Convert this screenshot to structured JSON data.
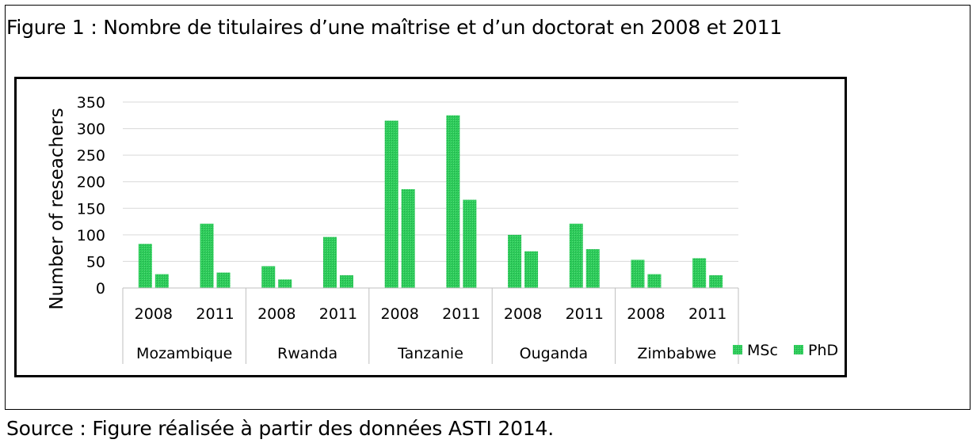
{
  "figure": {
    "caption": "Figure 1 : Nombre de titulaires d’une maîtrise et d’un doctorat en 2008 et 2011",
    "source": "Source : Figure réalisée à partir des données ASTI 2014."
  },
  "chart_data": {
    "type": "bar",
    "title": "",
    "xlabel": "",
    "ylabel": "Number of reseachers",
    "ylim": [
      0,
      350
    ],
    "yticks": [
      0,
      50,
      100,
      150,
      200,
      250,
      300,
      350
    ],
    "grid": true,
    "legend_position": "bottom-right",
    "groups": [
      {
        "name": "Mozambique",
        "years": [
          "2008",
          "2011"
        ]
      },
      {
        "name": "Rwanda",
        "years": [
          "2008",
          "2011"
        ]
      },
      {
        "name": "Tanzanie",
        "years": [
          "2008",
          "2011"
        ]
      },
      {
        "name": "Ouganda",
        "years": [
          "2008",
          "2011"
        ]
      },
      {
        "name": "Zimbabwe",
        "years": [
          "2008",
          "2011"
        ]
      }
    ],
    "categories": [
      "Mozambique 2008",
      "Mozambique 2011",
      "Rwanda 2008",
      "Rwanda 2011",
      "Tanzanie 2008",
      "Tanzanie 2011",
      "Ouganda 2008",
      "Ouganda 2011",
      "Zimbabwe 2008",
      "Zimbabwe 2011"
    ],
    "series": [
      {
        "name": "MSc",
        "color": "#22c55e",
        "values": [
          83,
          121,
          41,
          96,
          315,
          325,
          100,
          121,
          53,
          56
        ]
      },
      {
        "name": "PhD",
        "color": "#22c55e",
        "values": [
          26,
          29,
          16,
          24,
          186,
          166,
          69,
          73,
          26,
          24
        ]
      }
    ]
  }
}
